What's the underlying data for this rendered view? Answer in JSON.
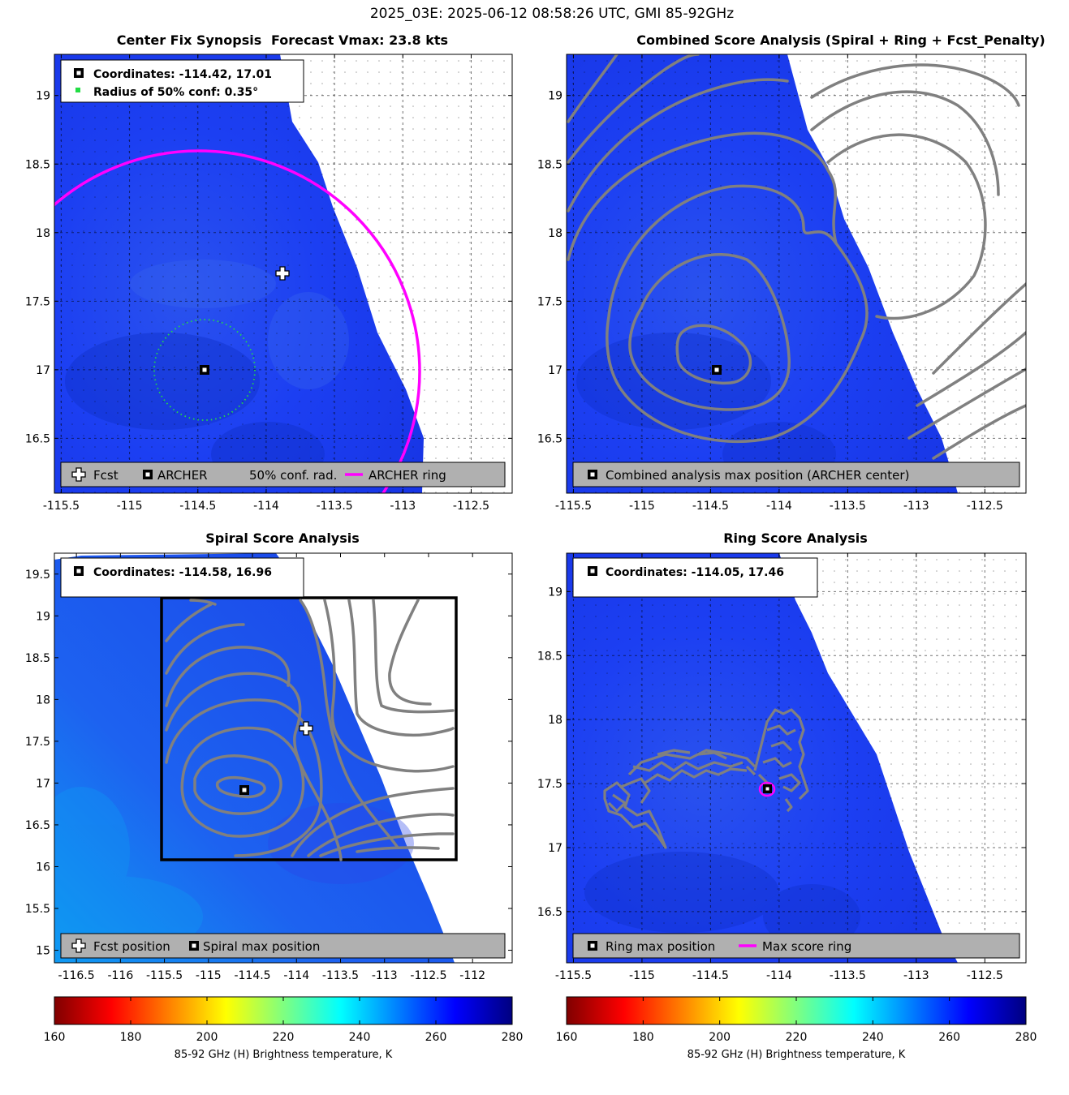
{
  "figure": {
    "suptitle": "2025_03E: 2025-06-12 08:58:26 UTC, GMI 85-92GHz"
  },
  "colors": {
    "tb_blue": "#1a3df0",
    "tb_light_blue": "#0a8cf5",
    "ring_magenta": "#ff00ff",
    "contour_gray": "#808080",
    "legend_gray": "#b0b0b0",
    "conf_green": "#22dd44"
  },
  "panels": {
    "synopsis": {
      "title": "Center Fix Synopsis",
      "subtitle": "Forecast Vmax: 23.8 kts",
      "info_coords": "Coordinates: -114.42, 17.01",
      "info_radius": "Radius of 50% conf: 0.35°",
      "legend": {
        "fcst": "Fcst",
        "archer": "ARCHER",
        "conf": "50% conf. rad.",
        "ring": "ARCHER ring"
      }
    },
    "combined": {
      "title": "Combined Score Analysis (Spiral + Ring + Fcst_Penalty)",
      "legend": {
        "max": "Combined analysis max position (ARCHER center)"
      }
    },
    "spiral": {
      "title": "Spiral Score Analysis",
      "info_coords": "Coordinates: -114.58, 16.96",
      "legend": {
        "fcst": "Fcst position",
        "max": "Spiral max position"
      }
    },
    "ring": {
      "title": "Ring Score Analysis",
      "info_coords": "Coordinates: -114.05, 17.46",
      "legend": {
        "max": "Ring max position",
        "ring": "Max score ring"
      }
    }
  },
  "chart_data": [
    {
      "type": "heatmap",
      "title": "Center Fix Synopsis",
      "subtitle": "Forecast Vmax: 23.8 kts",
      "xlim": [
        -115.55,
        -112.2
      ],
      "ylim": [
        16.1,
        19.3
      ],
      "xticks": [
        "-115.5",
        "-115",
        "-114.5",
        "-114",
        "-113.5",
        "-113",
        "-112.5"
      ],
      "yticks": [
        "16.5",
        "17",
        "17.5",
        "18",
        "18.5",
        "19"
      ],
      "grid": true,
      "archer_center": {
        "lon": -114.42,
        "lat": 17.01
      },
      "fcst_position": {
        "lon": -113.85,
        "lat": 17.72
      },
      "conf_radius_deg": 0.35,
      "archer_ring_radius_deg": 1.5,
      "legend_position": "bottom"
    },
    {
      "type": "heatmap",
      "title": "Combined Score Analysis (Spiral + Ring + Fcst_Penalty)",
      "xlim": [
        -115.55,
        -112.2
      ],
      "ylim": [
        16.1,
        19.3
      ],
      "xticks": [
        "-115.5",
        "-115",
        "-114.5",
        "-114",
        "-113.5",
        "-113",
        "-112.5"
      ],
      "yticks": [
        "16.5",
        "17",
        "17.5",
        "18",
        "18.5",
        "19"
      ],
      "grid": true,
      "max_position": {
        "lon": -114.42,
        "lat": 17.01
      },
      "legend_position": "bottom"
    },
    {
      "type": "heatmap",
      "title": "Spiral Score Analysis",
      "xlim": [
        -116.75,
        -111.55
      ],
      "ylim": [
        14.85,
        19.75
      ],
      "xticks": [
        "-116.5",
        "-116",
        "-115.5",
        "-115",
        "-114.5",
        "-114",
        "-113.5",
        "-113",
        "-112.5",
        "-112"
      ],
      "yticks": [
        "15",
        "15.5",
        "16",
        "16.5",
        "17",
        "17.5",
        "18",
        "18.5",
        "19",
        "19.5"
      ],
      "grid": false,
      "max_position": {
        "lon": -114.58,
        "lat": 16.96
      },
      "fcst_position": {
        "lon": -113.85,
        "lat": 17.72
      },
      "legend_position": "bottom"
    },
    {
      "type": "heatmap",
      "title": "Ring Score Analysis",
      "xlim": [
        -115.55,
        -112.2
      ],
      "ylim": [
        16.1,
        19.3
      ],
      "xticks": [
        "-115.5",
        "-115",
        "-114.5",
        "-114",
        "-113.5",
        "-113",
        "-112.5"
      ],
      "yticks": [
        "16.5",
        "17",
        "17.5",
        "18",
        "18.5",
        "19"
      ],
      "grid": true,
      "max_position": {
        "lon": -114.05,
        "lat": 17.46
      },
      "legend_position": "bottom"
    }
  ],
  "colorbars": [
    {
      "label": "85-92 GHz (H) Brightness temperature, K",
      "range": [
        160,
        280
      ],
      "ticks": [
        "160",
        "180",
        "200",
        "220",
        "240",
        "260",
        "280"
      ]
    },
    {
      "label": "85-92 GHz (H) Brightness temperature, K",
      "range": [
        160,
        280
      ],
      "ticks": [
        "160",
        "180",
        "200",
        "220",
        "240",
        "260",
        "280"
      ]
    }
  ]
}
